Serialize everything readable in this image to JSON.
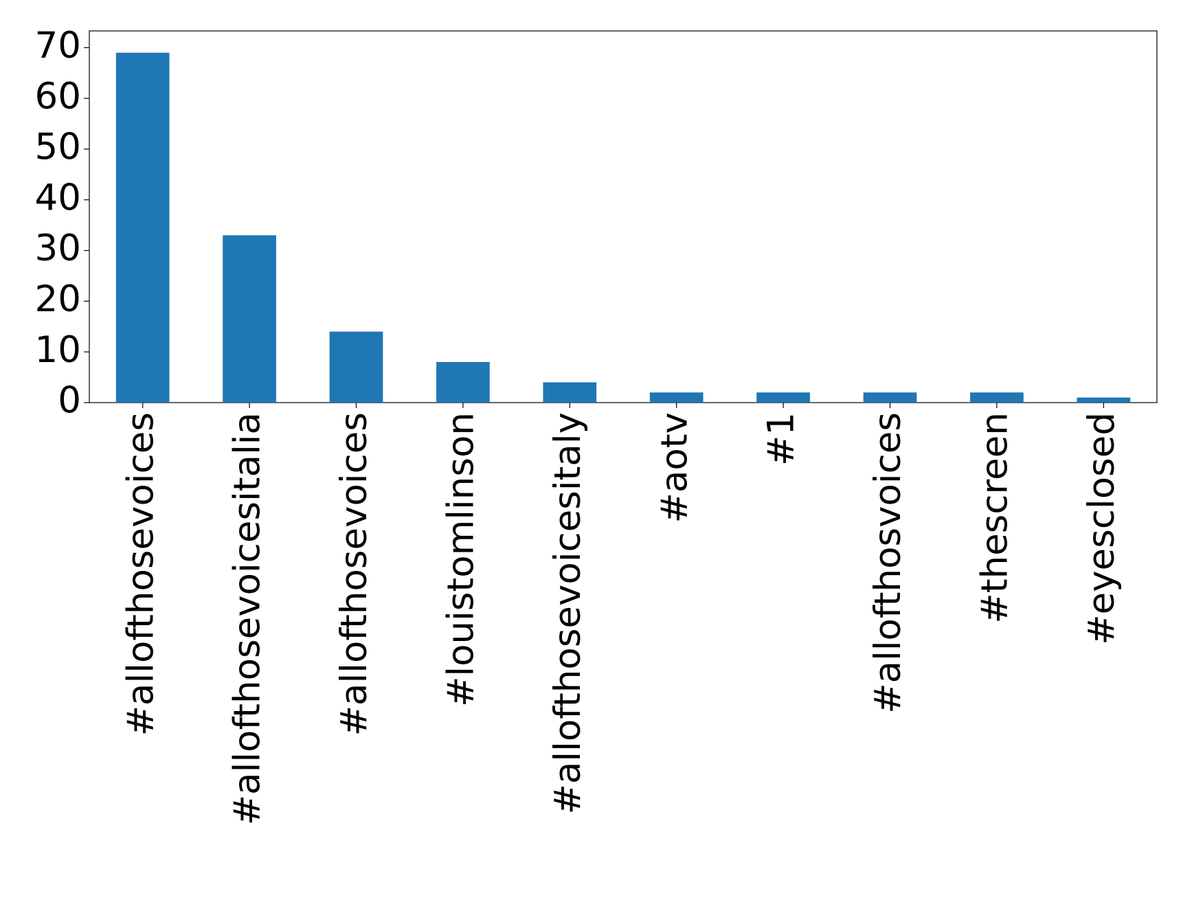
{
  "chart_data": {
    "type": "bar",
    "categories": [
      "#allofthosevoices",
      "#allofthosevoicesitalia",
      "#allofthosevoices",
      "#louistomlinson",
      "#allofthosevoicesitaly",
      "#aotv",
      "#1",
      "#allofthosvoices",
      "#thescreen",
      "#eyesclosed"
    ],
    "values": [
      69,
      33,
      14,
      8,
      4,
      2,
      2,
      2,
      2,
      1
    ],
    "color": "#1f77b4",
    "ylim": [
      0,
      73.3
    ],
    "yticks": [
      0,
      10,
      20,
      30,
      40,
      50,
      60,
      70
    ],
    "grid": false
  }
}
